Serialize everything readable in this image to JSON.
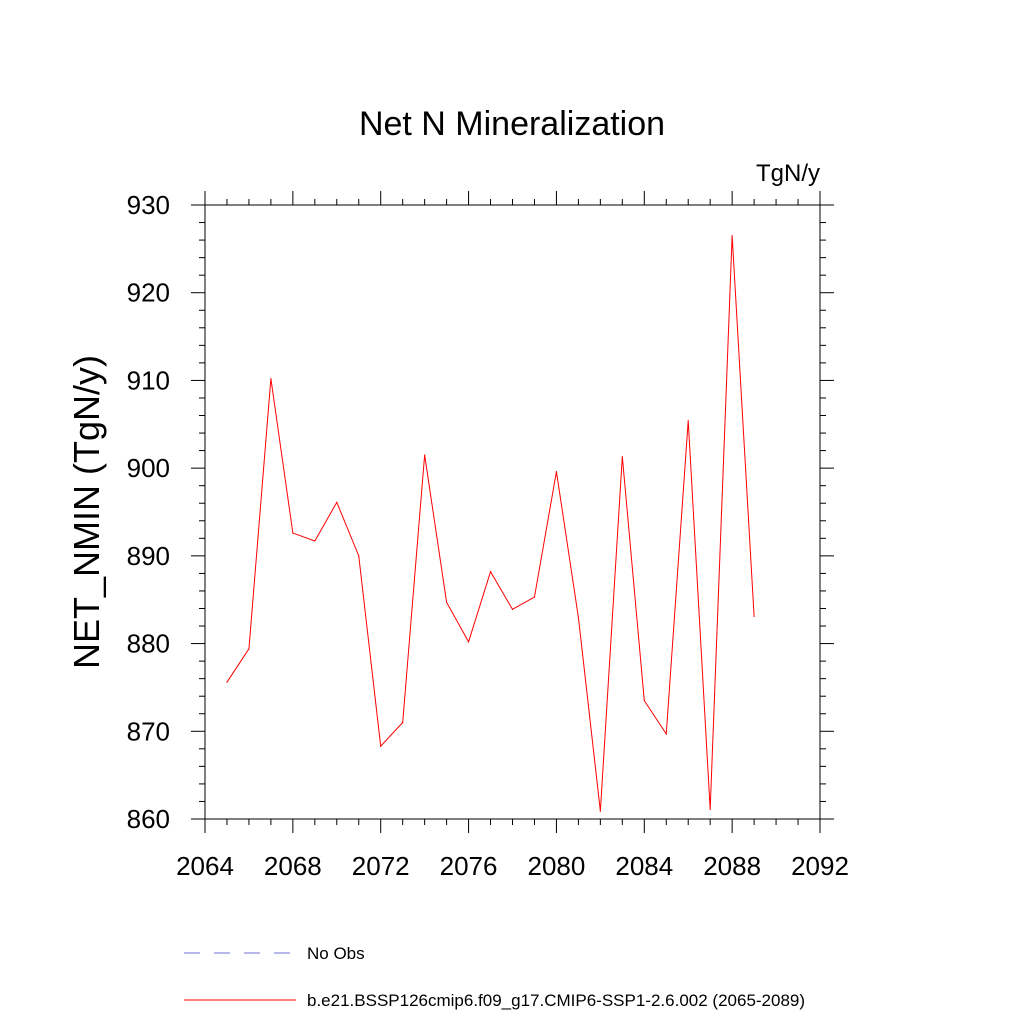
{
  "chart_data": {
    "type": "line",
    "title": "Net N Mineralization",
    "units": "TgN/y",
    "xlabel": "",
    "ylabel": "NET_NMIN  (TgN/y)",
    "xlim": [
      2064,
      2092
    ],
    "ylim": [
      860,
      930
    ],
    "xticks": [
      2064,
      2068,
      2072,
      2076,
      2080,
      2084,
      2088,
      2092
    ],
    "yticks": [
      860,
      870,
      880,
      890,
      900,
      910,
      920,
      930
    ],
    "x_minor_step": 1,
    "y_minor_step": 2,
    "grid": false,
    "series": [
      {
        "name": "b.e21.BSSP126cmip6.f09_g17.CMIP6-SSP1-2.6.002 (2065-2089)",
        "color": "#ff0000",
        "style": "solid",
        "x": [
          2065,
          2066,
          2067,
          2068,
          2069,
          2070,
          2071,
          2072,
          2073,
          2074,
          2075,
          2076,
          2077,
          2078,
          2079,
          2080,
          2081,
          2082,
          2083,
          2084,
          2085,
          2086,
          2087,
          2088,
          2089
        ],
        "values": [
          875.6,
          879.4,
          910.2,
          892.6,
          891.7,
          896.1,
          890.0,
          868.3,
          871.0,
          901.5,
          884.7,
          880.2,
          888.2,
          883.9,
          885.3,
          899.6,
          883.0,
          860.9,
          901.3,
          873.5,
          869.7,
          905.4,
          861.1,
          926.5,
          883.1
        ]
      }
    ],
    "legend": {
      "placement": "bottom",
      "entries": [
        {
          "label": "No Obs",
          "color": "#6f6fd0",
          "style": "dashed"
        },
        {
          "label": "b.e21.BSSP126cmip6.f09_g17.CMIP6-SSP1-2.6.002 (2065-2089)",
          "color": "#ff0000",
          "style": "solid"
        }
      ]
    }
  }
}
